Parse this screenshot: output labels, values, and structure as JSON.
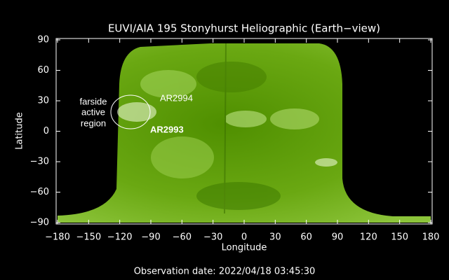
{
  "chart_data": {
    "type": "map",
    "title": "EUVI/AIA 195 Stonyhurst Heliographic (Earth−view)",
    "x_label": "Longitude",
    "y_label": "Latitude",
    "footer": "Observation date: 2022/04/18 03:45:30",
    "annotations": [
      "farside",
      "active",
      "region",
      "AR2994",
      "AR2993"
    ],
    "xlim": [
      -180,
      180
    ],
    "ylim": [
      -90,
      90
    ],
    "xticks": [
      {
        "value": -180,
        "label": "−180"
      },
      {
        "value": -150,
        "label": "−150"
      },
      {
        "value": -120,
        "label": "−120"
      },
      {
        "value": -90,
        "label": "−90"
      },
      {
        "value": -60,
        "label": "−60"
      },
      {
        "value": -30,
        "label": "−30"
      },
      0,
      30,
      60,
      90,
      120,
      150,
      180
    ],
    "yticks": [
      {
        "value": -90,
        "label": "−90"
      },
      {
        "value": -60,
        "label": "−60"
      },
      {
        "value": -30,
        "label": "−30"
      },
      0,
      30,
      60,
      90
    ]
  }
}
